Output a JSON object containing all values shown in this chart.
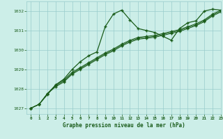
{
  "title": "Graphe pression niveau de la mer (hPa)",
  "bg_color": "#cceee8",
  "grid_color": "#99cccc",
  "line_color": "#1a5c1a",
  "marker_color": "#1a5c1a",
  "xlim": [
    -0.5,
    23
  ],
  "ylim": [
    1026.7,
    1032.5
  ],
  "yticks": [
    1027,
    1028,
    1029,
    1030,
    1031,
    1032
  ],
  "xticks": [
    0,
    1,
    2,
    3,
    4,
    5,
    6,
    7,
    8,
    9,
    10,
    11,
    12,
    13,
    14,
    15,
    16,
    17,
    18,
    19,
    20,
    21,
    22,
    23
  ],
  "series1": [
    1027.0,
    1027.2,
    1027.7,
    1028.2,
    1028.5,
    1029.0,
    1029.4,
    1029.7,
    1029.9,
    1031.2,
    1031.85,
    1032.05,
    1031.55,
    1031.1,
    1031.0,
    1030.9,
    1030.7,
    1030.5,
    1031.1,
    1031.4,
    1031.5,
    1032.0,
    1032.1,
    1032.05
  ],
  "series2": [
    1027.0,
    1027.2,
    1027.75,
    1028.2,
    1028.45,
    1028.85,
    1029.1,
    1029.35,
    1029.6,
    1029.85,
    1030.05,
    1030.3,
    1030.5,
    1030.65,
    1030.7,
    1030.75,
    1030.85,
    1030.95,
    1031.05,
    1031.2,
    1031.35,
    1031.55,
    1031.85,
    1032.05
  ],
  "series3": [
    1027.0,
    1027.2,
    1027.75,
    1028.15,
    1028.4,
    1028.8,
    1029.05,
    1029.3,
    1029.55,
    1029.8,
    1030.0,
    1030.25,
    1030.45,
    1030.6,
    1030.65,
    1030.7,
    1030.8,
    1030.9,
    1031.0,
    1031.15,
    1031.3,
    1031.5,
    1031.8,
    1032.0
  ],
  "series4": [
    1027.0,
    1027.2,
    1027.75,
    1028.1,
    1028.35,
    1028.75,
    1029.0,
    1029.25,
    1029.5,
    1029.75,
    1029.95,
    1030.2,
    1030.4,
    1030.55,
    1030.6,
    1030.65,
    1030.75,
    1030.85,
    1030.95,
    1031.1,
    1031.25,
    1031.45,
    1031.75,
    1031.95
  ]
}
